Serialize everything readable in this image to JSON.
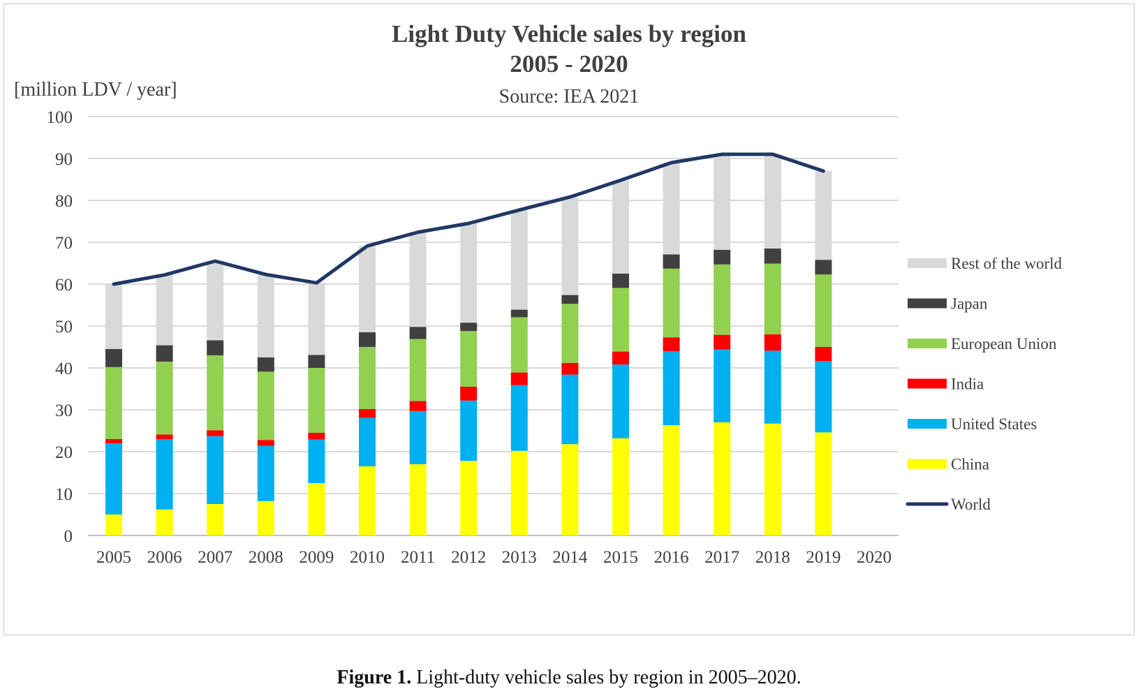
{
  "chart_data": {
    "type": "bar",
    "stacked": true,
    "title": "Light Duty Vehicle sales by region",
    "title_line2": "2005 - 2020",
    "subtitle": "Source: IEA 2021",
    "ylabel": "[million LDV / year]",
    "ylim": [
      0,
      100
    ],
    "yticks": [
      0,
      10,
      20,
      30,
      40,
      50,
      60,
      70,
      80,
      90,
      100
    ],
    "grid": true,
    "legend_position": "right",
    "categories": [
      "2005",
      "2006",
      "2007",
      "2008",
      "2009",
      "2010",
      "2011",
      "2012",
      "2013",
      "2014",
      "2015",
      "2016",
      "2017",
      "2018",
      "2019",
      "2020"
    ],
    "series": [
      {
        "name": "China",
        "color": "#ffff00",
        "values": [
          5,
          6.2,
          7.5,
          8.2,
          12.5,
          16.5,
          17,
          17.8,
          20.2,
          21.8,
          23.2,
          26.3,
          27,
          26.7,
          24.6,
          null
        ]
      },
      {
        "name": "United States",
        "color": "#00b0f0",
        "values": [
          17,
          16.8,
          16.2,
          13.2,
          10.4,
          11.6,
          12.7,
          14.4,
          15.7,
          16.6,
          17.6,
          17.7,
          17.4,
          17.4,
          17,
          null
        ]
      },
      {
        "name": "India",
        "color": "#ff0000",
        "values": [
          1,
          1.1,
          1.4,
          1.4,
          1.6,
          2.1,
          2.4,
          3.3,
          3,
          2.8,
          3.1,
          3.3,
          3.5,
          3.9,
          3.4,
          null
        ]
      },
      {
        "name": "European Union",
        "color": "#92d050",
        "values": [
          17.2,
          17.4,
          17.9,
          16.3,
          15.5,
          14.8,
          14.8,
          13.3,
          13.2,
          14.1,
          15.2,
          16.4,
          16.8,
          16.9,
          17.3,
          null
        ]
      },
      {
        "name": "Japan",
        "color": "#404040",
        "values": [
          4.3,
          3.9,
          3.6,
          3.4,
          3.1,
          3.5,
          2.9,
          2,
          1.8,
          2.1,
          3.4,
          3.4,
          3.5,
          3.6,
          3.5,
          null
        ]
      },
      {
        "name": "Rest of the world",
        "color": "#d9d9d9",
        "values": [
          15.5,
          16.8,
          18.9,
          19.8,
          17.2,
          20.6,
          22.6,
          23.7,
          23.8,
          23.4,
          22.3,
          21.9,
          22.8,
          22.5,
          21.2,
          null
        ]
      }
    ],
    "line_series": {
      "name": "World",
      "color": "#203864",
      "values": [
        60,
        62.2,
        65.5,
        62.3,
        60.3,
        69.1,
        72.4,
        74.5,
        77.7,
        80.8,
        84.8,
        89,
        91,
        91,
        87,
        null
      ]
    },
    "legend_order": [
      "Rest of the world",
      "Japan",
      "European Union",
      "India",
      "United States",
      "China",
      "World"
    ]
  },
  "caption": {
    "label": "Figure 1.",
    "text": "Light-duty vehicle sales by region in 2005–2020."
  }
}
